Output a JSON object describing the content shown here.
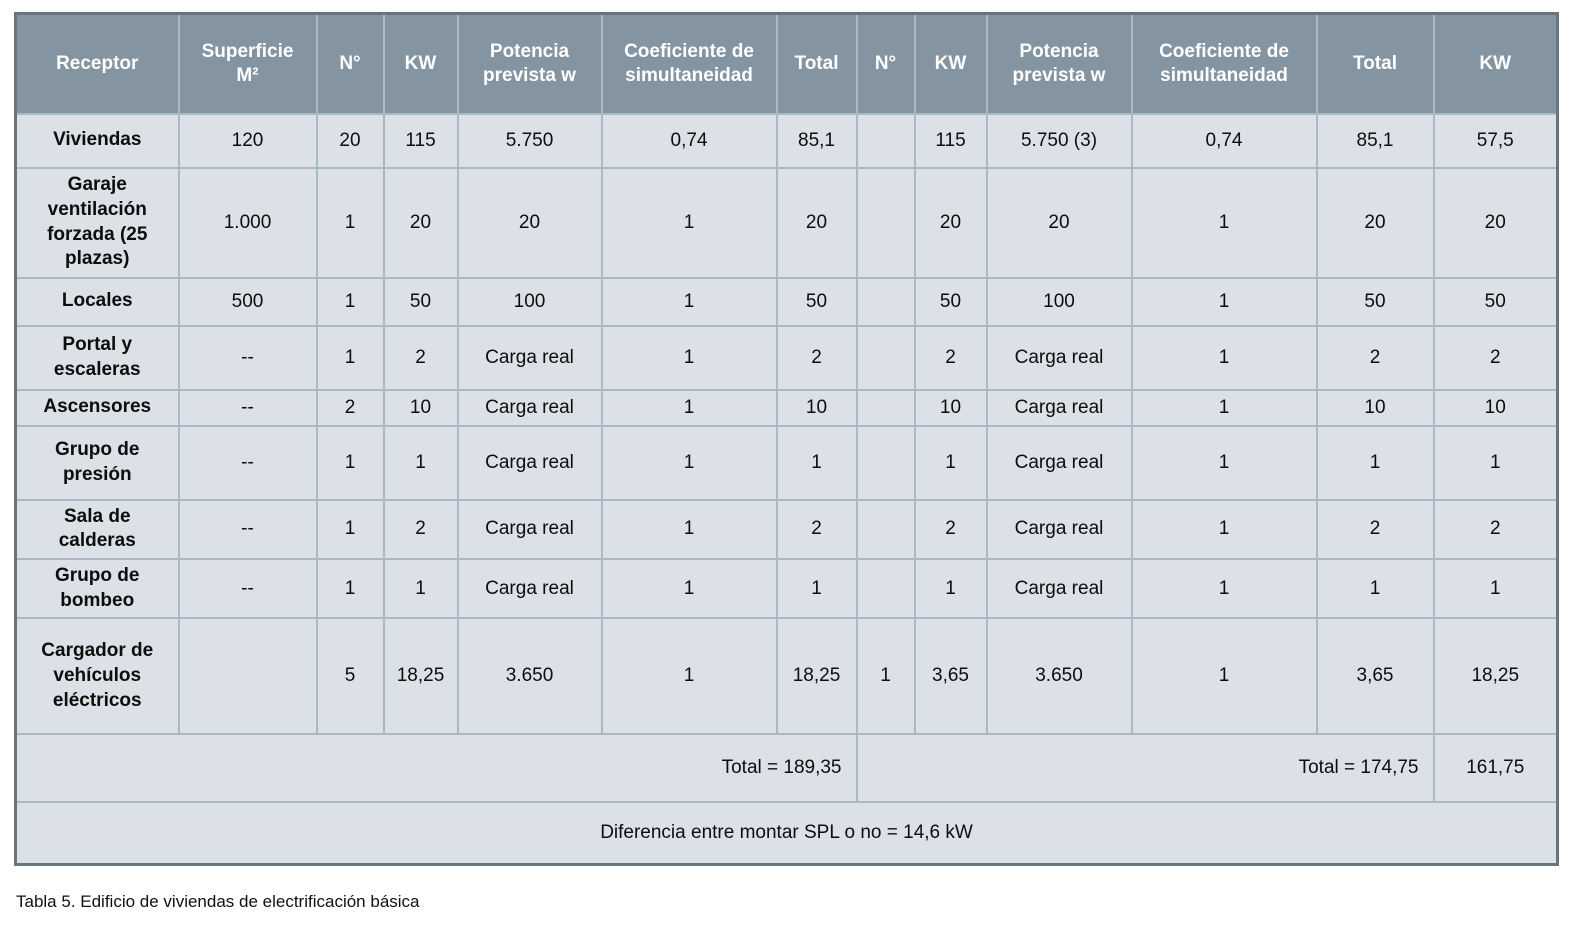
{
  "table": {
    "columns": [
      "Receptor",
      "Superficie\nM²",
      "N°",
      "KW",
      "Potencia\nprevista w",
      "Coeficiente de\nsimultaneidad",
      "Total",
      "N°",
      "KW",
      "Potencia\nprevista w",
      "Coeficiente de\nsimultaneidad",
      "Total",
      "KW"
    ],
    "rows": [
      {
        "cells": [
          "Viviendas",
          "120",
          "20",
          "115",
          "5.750",
          "0,74",
          "85,1",
          "",
          "115",
          "5.750 (3)",
          "0,74",
          "85,1",
          "57,5"
        ]
      },
      {
        "cells": [
          "Garaje ventilación forzada (25 plazas)",
          "1.000",
          "1",
          "20",
          "20",
          "1",
          "20",
          "",
          "20",
          "20",
          "1",
          "20",
          "20"
        ]
      },
      {
        "cells": [
          "Locales",
          "500",
          "1",
          "50",
          "100",
          "1",
          "50",
          "",
          "50",
          "100",
          "1",
          "50",
          "50"
        ]
      },
      {
        "cells": [
          "Portal y escaleras",
          "--",
          "1",
          "2",
          "Carga real",
          "1",
          "2",
          "",
          "2",
          "Carga real",
          "1",
          "2",
          "2"
        ]
      },
      {
        "cells": [
          "Ascensores",
          "--",
          "2",
          "10",
          "Carga real",
          "1",
          "10",
          "",
          "10",
          "Carga real",
          "1",
          "10",
          "10"
        ]
      },
      {
        "cells": [
          "Grupo de presión",
          "--",
          "1",
          "1",
          "Carga real",
          "1",
          "1",
          "",
          "1",
          "Carga real",
          "1",
          "1",
          "1"
        ]
      },
      {
        "cells": [
          "Sala de calderas",
          "--",
          "1",
          "2",
          "Carga real",
          "1",
          "2",
          "",
          "2",
          "Carga real",
          "1",
          "2",
          "2"
        ]
      },
      {
        "cells": [
          "Grupo de bombeo",
          "--",
          "1",
          "1",
          "Carga real",
          "1",
          "1",
          "",
          "1",
          "Carga real",
          "1",
          "1",
          "1"
        ]
      },
      {
        "cells": [
          "Cargador de vehículos eléctricos",
          "",
          "5",
          "18,25",
          "3.650",
          "1",
          "18,25",
          "1",
          "3,65",
          "3.650",
          "1",
          "3,65",
          "18,25"
        ]
      }
    ],
    "totals": {
      "left_label": "Total = 189,35",
      "right_label": "Total = 174,75",
      "kw_total": "161,75"
    },
    "footer_note": "Diferencia entre montar SPL o no = 14,6 kW"
  },
  "caption": "Tabla 5. Edificio de viviendas de electrificación básica",
  "colors": {
    "header_bg": "#8494a1",
    "body_bg": "#dbe1e6",
    "inner_border": "#a9bac5",
    "outer_border": "#69747e",
    "header_text": "#ffffff",
    "body_text": "#0d0d0d"
  }
}
